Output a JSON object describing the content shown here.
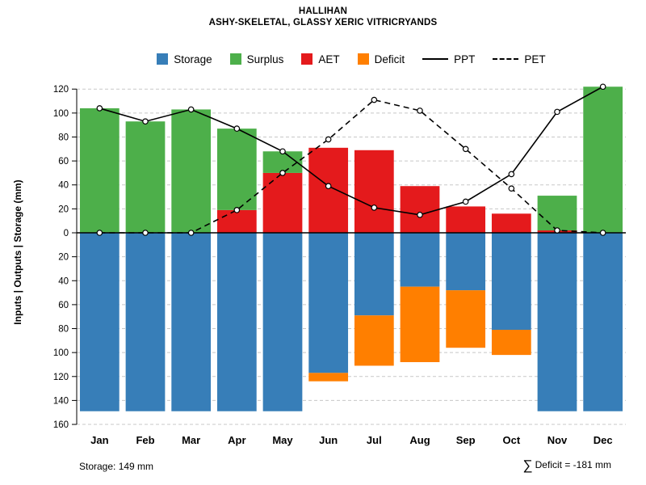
{
  "title": "HALLIHAN",
  "subtitle": "ASHY-SKELETAL, GLASSY XERIC VITRICRYANDS",
  "footer": {
    "storage_note": "Storage: 149 mm",
    "deficit_sigma": "∑",
    "deficit_note": "Deficit = -181 mm"
  },
  "legend": {
    "items": [
      {
        "label": "Storage",
        "swatch": "#377EB8"
      },
      {
        "label": "Surplus",
        "swatch": "#4DAF4A"
      },
      {
        "label": "AET",
        "swatch": "#E41A1C"
      },
      {
        "label": "Deficit",
        "swatch": "#FF7F00"
      },
      {
        "label": "PPT",
        "line": "solid"
      },
      {
        "label": "PET",
        "line": "dashed"
      }
    ]
  },
  "chart_data": {
    "type": "bar",
    "title": "HALLIHAN",
    "subtitle": "ASHY-SKELETAL, GLASSY XERIC VITRICRYANDS",
    "categories": [
      "Jan",
      "Feb",
      "Mar",
      "Apr",
      "May",
      "Jun",
      "Jul",
      "Aug",
      "Sep",
      "Oct",
      "Nov",
      "Dec"
    ],
    "xlabel": "",
    "ylabel": "Inputs | Outputs | Storage    (mm)",
    "legend_position": "top",
    "grid": "horizontal-dashed",
    "grid_color": "#c8c8c8",
    "y_axis": {
      "top_mm": 135,
      "bottom_mm": -162,
      "ticks": [
        120,
        100,
        80,
        60,
        40,
        20,
        0,
        -20,
        -40,
        -60,
        -80,
        -100,
        -120,
        -140,
        -160
      ],
      "tick_labels": [
        "120",
        "100",
        "80",
        "60",
        "40",
        "20",
        "0",
        "20",
        "40",
        "60",
        "80",
        "100",
        "120",
        "140",
        "160"
      ]
    },
    "series": [
      {
        "name": "Storage",
        "kind": "bar-down",
        "stack": 0,
        "color": "#377EB8",
        "values": [
          149,
          149,
          149,
          149,
          149,
          117,
          69,
          45,
          48,
          81,
          149,
          149
        ]
      },
      {
        "name": "Deficit",
        "kind": "bar-down",
        "stack": 1,
        "color": "#FF7F00",
        "values": [
          0,
          0,
          0,
          0,
          0,
          7,
          42,
          63,
          48,
          21,
          0,
          0
        ]
      },
      {
        "name": "AET",
        "kind": "bar-up",
        "stack": 0,
        "color": "#E41A1C",
        "values": [
          0,
          0,
          0,
          19,
          50,
          71,
          69,
          39,
          22,
          16,
          2,
          0
        ]
      },
      {
        "name": "Surplus",
        "kind": "bar-up",
        "stack": 1,
        "color": "#4DAF4A",
        "values": [
          104,
          93,
          103,
          68,
          18,
          0,
          0,
          0,
          0,
          0,
          29,
          122
        ]
      },
      {
        "name": "PPT",
        "kind": "line-solid",
        "color": "#000000",
        "values": [
          104,
          93,
          103,
          87,
          68,
          39,
          21,
          15,
          26,
          49,
          101,
          122
        ]
      },
      {
        "name": "PET",
        "kind": "line-dashed",
        "color": "#000000",
        "values": [
          0,
          0,
          0,
          19,
          50,
          78,
          111,
          102,
          70,
          37,
          2,
          0
        ]
      }
    ],
    "annotations": {
      "storage": "Storage: 149 mm",
      "deficit_sum": "∑ Deficit = -181 mm"
    }
  }
}
